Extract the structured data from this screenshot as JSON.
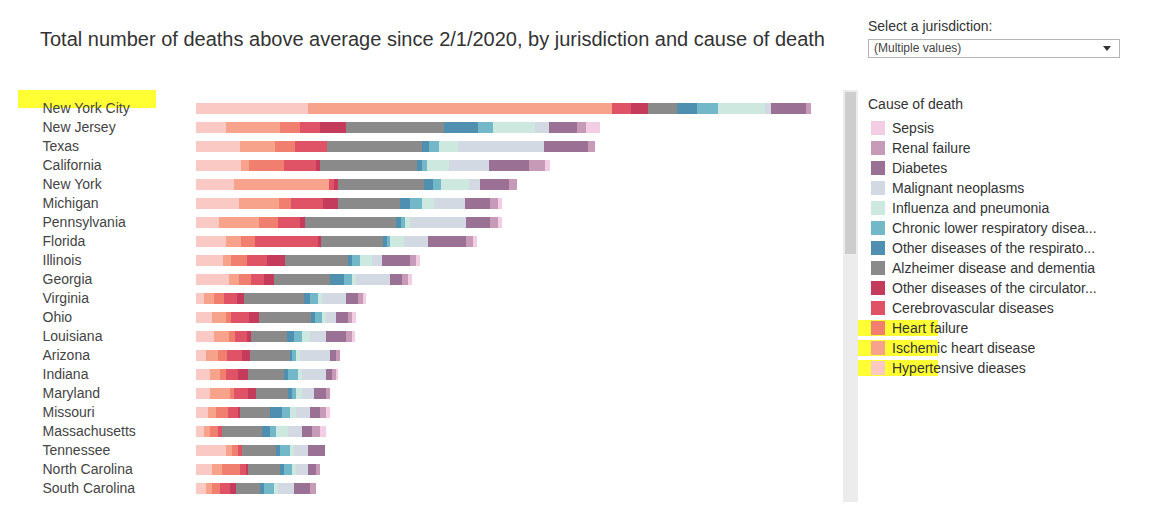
{
  "chart_data": {
    "type": "bar",
    "orientation": "horizontal",
    "stacked": true,
    "title": "Total number of deaths above average since 2/1/2020, by jurisdiction and cause of death",
    "legend_title": "Cause of death",
    "legend": "right",
    "tick_labels": "y",
    "xlim": [
      0,
      624
    ],
    "categories": [
      "New York City",
      "New Jersey",
      "Texas",
      "California",
      "New York",
      "Michigan",
      "Pennsylvania",
      "Florida",
      "Illinois",
      "Georgia",
      "Virginia",
      "Ohio",
      "Louisiana",
      "Arizona",
      "Indiana",
      "Maryland",
      "Missouri",
      "Massachusetts",
      "Tennessee",
      "North Carolina",
      "South Carolina"
    ],
    "series": [
      {
        "name": "Hypertensive dieases",
        "color": "#fbc9c4",
        "values": [
          112,
          30,
          44,
          45,
          38,
          43,
          23,
          30,
          27,
          33,
          8,
          16,
          18,
          10,
          14,
          14,
          12,
          8,
          30,
          16,
          10
        ]
      },
      {
        "name": "Ischemic heart disease",
        "color": "#f7a38c",
        "values": [
          304,
          54,
          35,
          8,
          95,
          40,
          40,
          15,
          8,
          10,
          10,
          14,
          15,
          12,
          10,
          20,
          8,
          6,
          6,
          10,
          6
        ]
      },
      {
        "name": "Heart failure",
        "color": "#f07f6f",
        "values": [
          0,
          20,
          20,
          35,
          0,
          12,
          19,
          14,
          16,
          12,
          10,
          5,
          6,
          9,
          6,
          4,
          12,
          8,
          6,
          18,
          8
        ]
      },
      {
        "name": "Cerebrovascular diseases",
        "color": "#e05266",
        "values": [
          19,
          20,
          32,
          32,
          5,
          32,
          22,
          63,
          20,
          13,
          13,
          18,
          12,
          15,
          12,
          14,
          10,
          4,
          4,
          6,
          10
        ]
      },
      {
        "name": "Other diseases of the circulator...",
        "color": "#c53b5c",
        "values": [
          17,
          26,
          0,
          4,
          4,
          15,
          5,
          3,
          18,
          10,
          7,
          10,
          4,
          8,
          10,
          8,
          2,
          0,
          0,
          2,
          6
        ]
      },
      {
        "name": "Alzheimer disease and dementia",
        "color": "#8a8a8a",
        "values": [
          29,
          98,
          95,
          97,
          86,
          62,
          91,
          62,
          63,
          56,
          60,
          52,
          36,
          40,
          36,
          32,
          30,
          40,
          34,
          32,
          24
        ]
      },
      {
        "name": "Other diseases of the respirato...",
        "color": "#4f8fb0",
        "values": [
          20,
          34,
          7,
          5,
          9,
          10,
          5,
          4,
          4,
          14,
          6,
          4,
          7,
          2,
          4,
          4,
          12,
          8,
          4,
          4,
          4
        ]
      },
      {
        "name": "Chronic lower respiratory disea...",
        "color": "#72b8c9",
        "values": [
          21,
          15,
          10,
          5,
          8,
          12,
          4,
          3,
          8,
          8,
          8,
          7,
          8,
          4,
          10,
          4,
          8,
          6,
          10,
          8,
          10
        ]
      },
      {
        "name": "Influenza and pneumonia",
        "color": "#cce8df",
        "values": [
          47,
          42,
          19,
          22,
          28,
          12,
          5,
          14,
          12,
          4,
          4,
          4,
          8,
          4,
          4,
          6,
          6,
          12,
          4,
          4,
          4
        ]
      },
      {
        "name": "Malignant neoplasms",
        "color": "#d3d9e3",
        "values": [
          6,
          14,
          86,
          40,
          11,
          31,
          56,
          24,
          10,
          34,
          24,
          10,
          16,
          30,
          24,
          12,
          14,
          14,
          14,
          12,
          16
        ]
      },
      {
        "name": "Diabetes",
        "color": "#9a7095",
        "values": [
          35,
          28,
          44,
          40,
          29,
          25,
          24,
          38,
          28,
          12,
          12,
          12,
          20,
          6,
          6,
          12,
          10,
          10,
          17,
          8,
          16
        ]
      },
      {
        "name": "Renal failure",
        "color": "#c79ab8",
        "values": [
          5,
          9,
          7,
          16,
          8,
          8,
          8,
          7,
          6,
          6,
          5,
          4,
          6,
          4,
          4,
          4,
          6,
          8,
          0,
          4,
          6
        ]
      },
      {
        "name": "Sepsis",
        "color": "#f2cde3",
        "values": [
          0,
          14,
          0,
          5,
          0,
          4,
          4,
          4,
          4,
          4,
          3,
          4,
          3,
          0,
          2,
          0,
          4,
          6,
          0,
          0,
          0
        ]
      }
    ]
  },
  "control": {
    "label": "Select a jurisdiction:",
    "selected": "(Multiple values)"
  },
  "highlighted": [
    "New York City",
    "Heart failure",
    "Ischemic heart disease",
    "Hypertensive dieases"
  ]
}
